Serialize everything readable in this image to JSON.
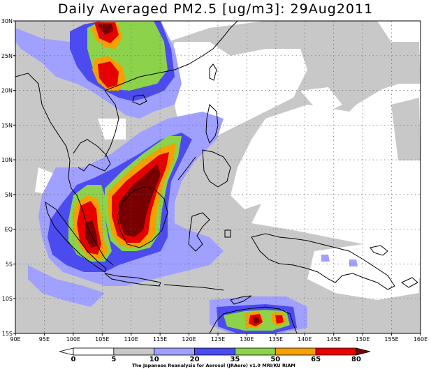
{
  "title": "Daily Averaged PM2.5 [ug/m3]: 29Aug2011",
  "map": {
    "lon_range": [
      90,
      160
    ],
    "lat_range": [
      -15,
      30
    ],
    "lon_ticks": [
      "90E",
      "95E",
      "100E",
      "105E",
      "110E",
      "115E",
      "120E",
      "125E",
      "130E",
      "135E",
      "140E",
      "145E",
      "150E",
      "155E",
      "160E"
    ],
    "lat_ticks": [
      "30N",
      "25N",
      "20N",
      "15N",
      "10N",
      "5N",
      "EQ",
      "5S",
      "10S",
      "15S"
    ]
  },
  "colorbar": {
    "levels": [
      "0",
      "5",
      "10",
      "20",
      "35",
      "50",
      "65",
      "80"
    ],
    "colors": [
      "#ffffff",
      "#ffffff",
      "#c8c8c8",
      "#9fa0ff",
      "#4b4bf0",
      "#8cd24b",
      "#f5a000",
      "#e60000",
      "#780000"
    ]
  },
  "credit": "The Japanese Reanalysis for Aerosol (JRAero) v1.0 MRI/KU RIAM"
}
